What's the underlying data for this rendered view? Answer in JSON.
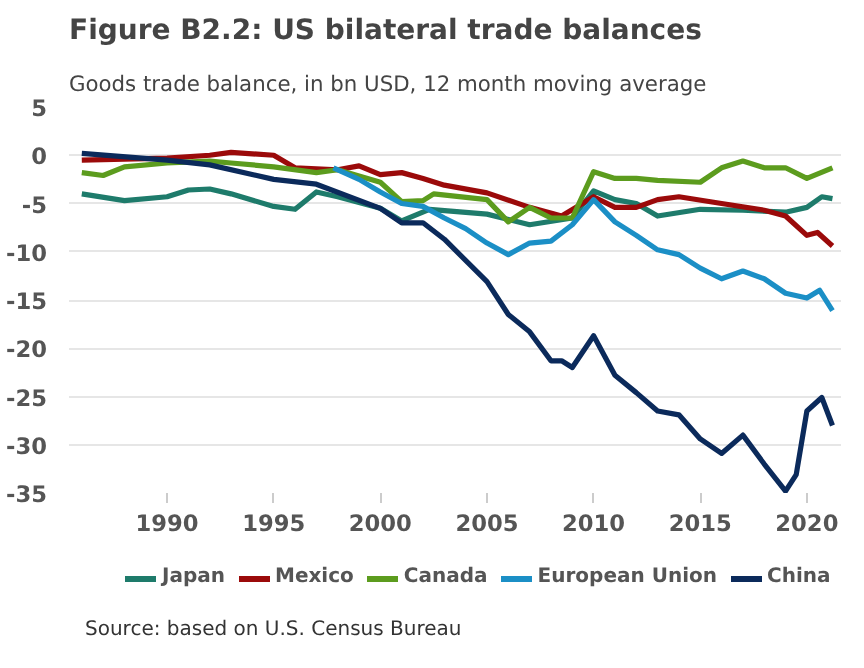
{
  "chart_data": {
    "type": "line",
    "title": "Figure B2.2: US bilateral trade balances",
    "subtitle": "Goods trade balance, in bn USD, 12 month moving average",
    "annotations": [
      "Source: based on U.S. Census Bureau"
    ],
    "xlim": [
      1985.4,
      2021.6
    ],
    "xticks": [
      1990,
      1995,
      2000,
      2005,
      2010,
      2015,
      2020
    ],
    "ylim": [
      -35,
      5
    ],
    "yticks": [
      5,
      0,
      -5,
      -10,
      -15,
      -20,
      -25,
      -30,
      -35
    ],
    "grid": "y",
    "legend": "bottom",
    "marker": "none",
    "line_style": "solid",
    "series": [
      {
        "name": "Japan",
        "color": "#1e7b6b",
        "x": [
          1986,
          1988,
          1990,
          1991,
          1992,
          1993,
          1995,
          1996,
          1997,
          1998,
          2000,
          2001,
          2002.3,
          2005,
          2007,
          2009,
          2010,
          2011,
          2012,
          2013,
          2015,
          2017,
          2019,
          2020,
          2020.7,
          2021.2
        ],
        "values": [
          -4,
          -4.7,
          -4.3,
          -3.6,
          -3.5,
          -4,
          -5.3,
          -5.6,
          -3.8,
          -4.3,
          -5.5,
          -6.8,
          -5.6,
          -6.1,
          -7.2,
          -6.5,
          -3.7,
          -4.6,
          -5,
          -6.3,
          -5.6,
          -5.7,
          -5.9,
          -5.4,
          -4.3,
          -4.5
        ]
      },
      {
        "name": "Mexico",
        "color": "#9b0a0a",
        "x": [
          1986,
          1990,
          1992,
          1993,
          1995,
          1996,
          1998,
          1999,
          2000,
          2001,
          2002,
          2003,
          2005,
          2007,
          2008.5,
          2010,
          2011,
          2012,
          2013,
          2014,
          2016,
          2018,
          2019,
          2020,
          2020.5,
          2021.2
        ],
        "values": [
          -0.5,
          -0.3,
          0,
          0.3,
          0,
          -1.3,
          -1.5,
          -1.1,
          -2,
          -1.8,
          -2.4,
          -3.1,
          -3.9,
          -5.4,
          -6.3,
          -4.3,
          -5.4,
          -5.4,
          -4.6,
          -4.3,
          -5,
          -5.7,
          -6.3,
          -8.3,
          -8,
          -9.4
        ]
      },
      {
        "name": "Canada",
        "color": "#5c9c1e",
        "x": [
          1986,
          1987,
          1988,
          1990,
          1992,
          1993,
          1995,
          1997,
          1998,
          2000,
          2001,
          2002,
          2002.5,
          2005,
          2006,
          2007,
          2008,
          2009,
          2010,
          2011,
          2012,
          2013,
          2015,
          2016,
          2017,
          2018,
          2019,
          2020,
          2021.2
        ],
        "values": [
          -1.8,
          -2.1,
          -1.2,
          -0.8,
          -0.6,
          -0.8,
          -1.2,
          -1.8,
          -1.5,
          -2.8,
          -4.8,
          -4.7,
          -4,
          -4.6,
          -6.9,
          -5.4,
          -6.5,
          -6.5,
          -1.7,
          -2.4,
          -2.4,
          -2.6,
          -2.8,
          -1.3,
          -0.6,
          -1.3,
          -1.3,
          -2.4,
          -1.3
        ]
      },
      {
        "name": "European Union",
        "color": "#1b8fc6",
        "x": [
          1997.8,
          1999,
          2000,
          2001,
          2002,
          2003,
          2004,
          2005,
          2006,
          2007,
          2008,
          2009,
          2010,
          2011,
          2012,
          2013,
          2014,
          2015,
          2016,
          2017,
          2018,
          2019,
          2020,
          2020.6,
          2021.2
        ],
        "values": [
          -1.3,
          -2.5,
          -3.8,
          -5,
          -5.3,
          -6.5,
          -7.6,
          -9.1,
          -10.3,
          -9.1,
          -8.9,
          -7.2,
          -4.6,
          -6.9,
          -8.3,
          -9.8,
          -10.3,
          -11.7,
          -12.8,
          -12,
          -12.8,
          -14.3,
          -14.8,
          -14,
          -16.1
        ]
      },
      {
        "name": "China",
        "color": "#0b2a5b",
        "x": [
          1986,
          1990,
          1992,
          1995,
          1997,
          2000,
          2001,
          2002,
          2003,
          2005,
          2006,
          2007,
          2008,
          2008.5,
          2009,
          2010,
          2011,
          2012,
          2013,
          2014,
          2015,
          2016,
          2017,
          2018,
          2019,
          2019.5,
          2020,
          2020.7,
          2021.2
        ],
        "values": [
          0.2,
          -0.5,
          -1,
          -2.5,
          -3,
          -5.5,
          -7,
          -7,
          -8.7,
          -13.1,
          -16.5,
          -18.3,
          -21.3,
          -21.3,
          -22,
          -18.7,
          -22.8,
          -24.6,
          -26.5,
          -26.9,
          -29.4,
          -30.9,
          -29,
          -32,
          -34.8,
          -33.1,
          -26.5,
          -25.1,
          -28
        ]
      }
    ]
  }
}
